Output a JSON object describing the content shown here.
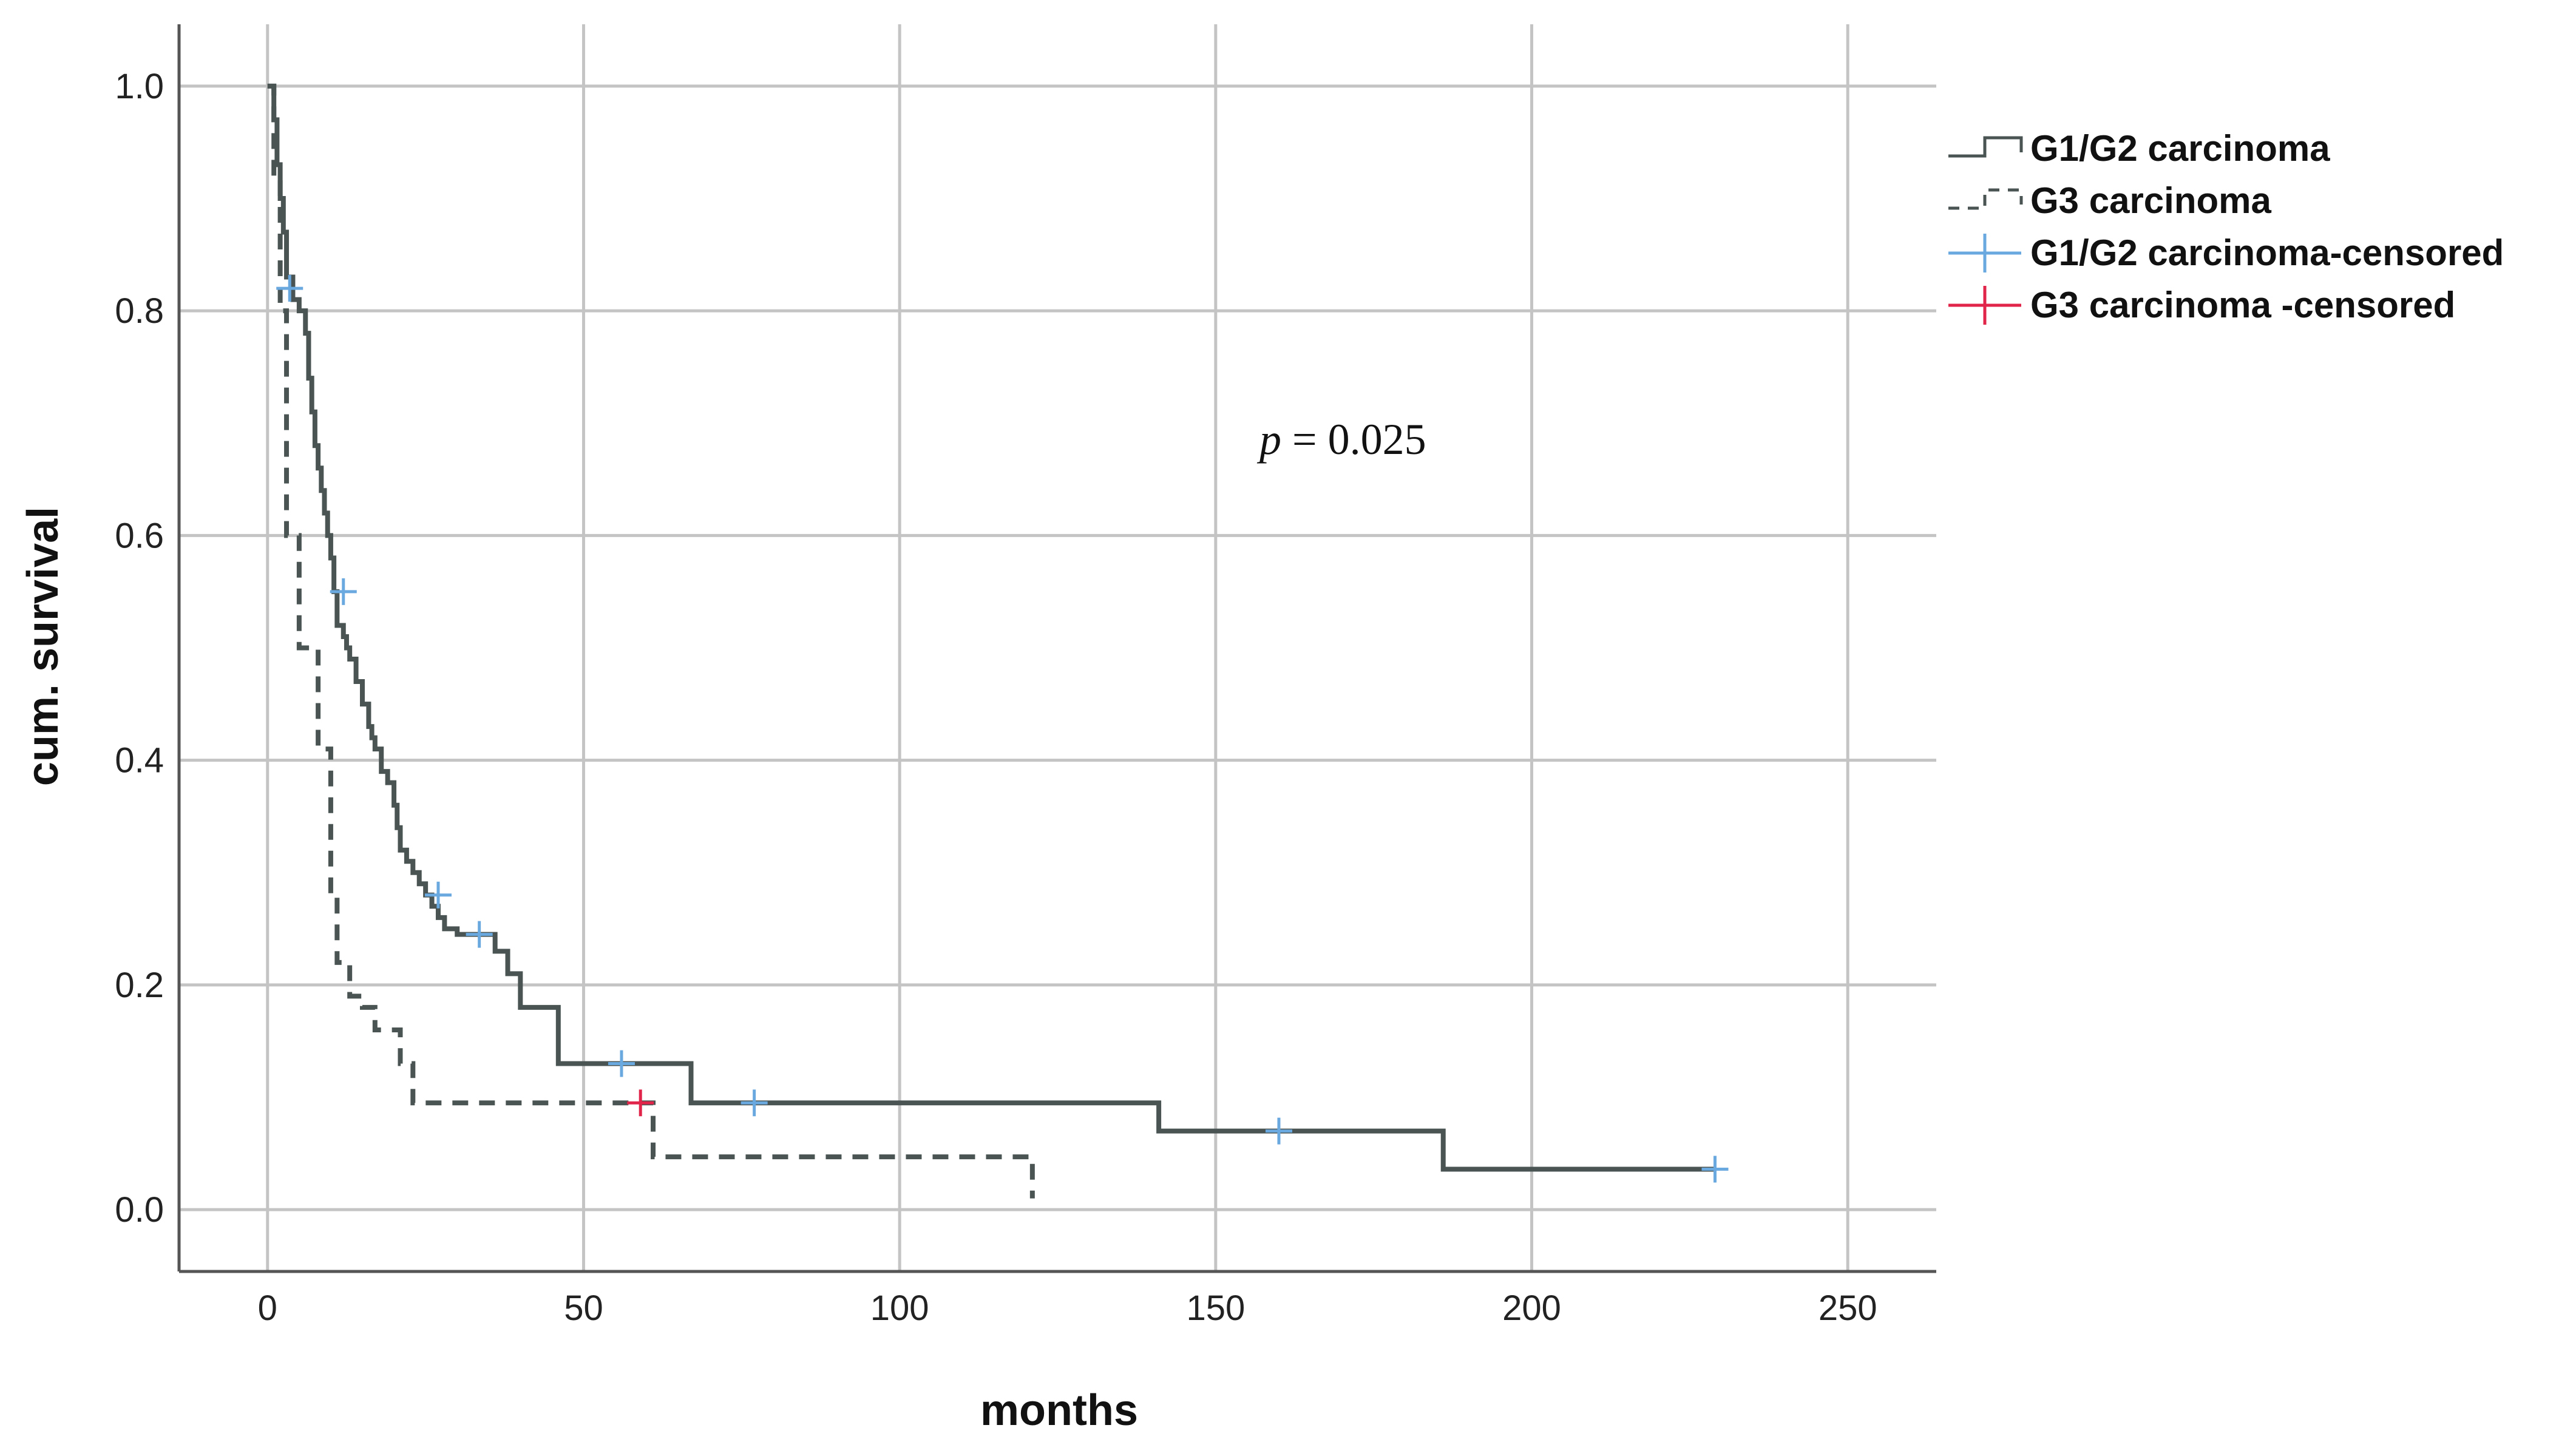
{
  "chart_data": {
    "type": "line",
    "step": true,
    "title": "",
    "xlabel": "months",
    "ylabel": "cum. survival",
    "xlim": [
      -14,
      264
    ],
    "ylim": [
      -0.055,
      1.055
    ],
    "xticks": [
      0,
      50,
      100,
      150,
      200,
      250
    ],
    "yticks": [
      0.0,
      0.2,
      0.4,
      0.6,
      0.8,
      1.0
    ],
    "xtick_labels": [
      "0",
      "50",
      "100",
      "150",
      "200",
      "250"
    ],
    "ytick_labels": [
      "0.0",
      "0.2",
      "0.4",
      "0.6",
      "0.8",
      "1.0"
    ],
    "grid": true,
    "legend_position": "right",
    "annotation": {
      "italic": "p",
      "rest": " = 0.025"
    },
    "series": [
      {
        "name": "G1/G2 carcinoma",
        "style": "solid",
        "color": "#4a5553",
        "x": [
          0,
          1,
          1.5,
          2,
          2.5,
          3,
          4,
          5,
          6,
          6.5,
          7,
          7.5,
          8,
          8.5,
          9,
          9.5,
          10,
          10.5,
          11,
          11.5,
          12,
          12.5,
          13,
          14,
          15,
          16,
          16.5,
          17,
          18,
          19,
          20,
          20.5,
          21,
          22,
          23,
          24,
          25,
          26,
          27,
          28,
          30,
          32,
          33,
          36,
          38,
          40,
          46,
          67,
          141,
          186,
          229
        ],
        "y": [
          1.0,
          0.97,
          0.93,
          0.9,
          0.87,
          0.83,
          0.81,
          0.8,
          0.78,
          0.74,
          0.71,
          0.68,
          0.66,
          0.64,
          0.62,
          0.6,
          0.58,
          0.55,
          0.52,
          0.52,
          0.51,
          0.5,
          0.49,
          0.47,
          0.45,
          0.43,
          0.42,
          0.41,
          0.39,
          0.38,
          0.36,
          0.34,
          0.32,
          0.31,
          0.3,
          0.29,
          0.28,
          0.27,
          0.26,
          0.25,
          0.245,
          0.245,
          0.245,
          0.23,
          0.21,
          0.18,
          0.13,
          0.095,
          0.07,
          0.036,
          0.036
        ]
      },
      {
        "name": "G3 carcinoma",
        "style": "dashed",
        "color": "#4a5553",
        "x": [
          0,
          1,
          2,
          3,
          5,
          7,
          8,
          9,
          10,
          11,
          13,
          15,
          17,
          19,
          21,
          23,
          56,
          61,
          121
        ],
        "y": [
          1.0,
          0.92,
          0.8,
          0.6,
          0.5,
          0.5,
          0.41,
          0.41,
          0.28,
          0.22,
          0.19,
          0.18,
          0.16,
          0.16,
          0.13,
          0.095,
          0.095,
          0.047,
          0.01
        ]
      }
    ],
    "censored": [
      {
        "name": "G1/G2 carcinoma-censored",
        "color": "#6aa8e0",
        "x": [
          3.5,
          12,
          27,
          33.5,
          56,
          77,
          160,
          229
        ],
        "y": [
          0.82,
          0.55,
          0.28,
          0.245,
          0.13,
          0.095,
          0.07,
          0.036
        ]
      },
      {
        "name": "G3 carcinoma -censored",
        "color": "#e0244a",
        "x": [
          59
        ],
        "y": [
          0.095
        ]
      }
    ]
  }
}
